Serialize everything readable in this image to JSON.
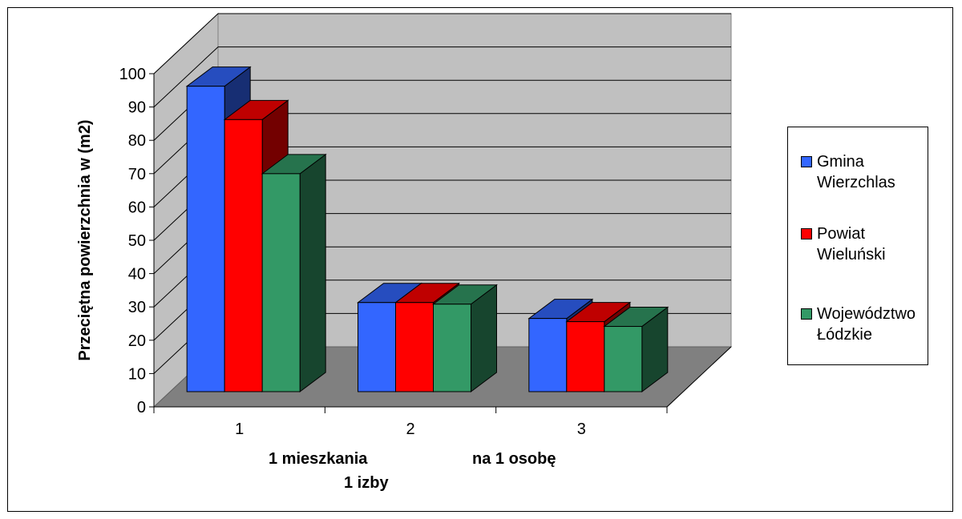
{
  "chart_data": {
    "type": "bar",
    "title": "",
    "ylabel": "Przeciętna powierzchnia w (m2)",
    "xlabel": "",
    "ylim": [
      0,
      100
    ],
    "yticks": [
      "0",
      "10",
      "20",
      "30",
      "40",
      "50",
      "60",
      "70",
      "80",
      "90",
      "100"
    ],
    "categories": [
      "1",
      "2",
      "3"
    ],
    "series": [
      {
        "name": "Gmina Wierzchlas",
        "color": "#3366ff",
        "values": [
          96,
          28,
          23
        ]
      },
      {
        "name": "Powiat Wieluński",
        "color": "#ff0000",
        "values": [
          85.5,
          28,
          22
        ]
      },
      {
        "name": "Województwo Łódzkie",
        "color": "#339966",
        "values": [
          68.5,
          27.5,
          20.5
        ]
      }
    ],
    "legend_position": "right",
    "grid": true,
    "three_d": true,
    "annotations": {
      "line1_left": "1 mieszkania",
      "line1_right": "na 1 osobę",
      "line2": "1 izby"
    }
  },
  "legend": {
    "items": [
      {
        "line1": "Gmina",
        "line2": "Wierzchlas",
        "color": "#3366ff"
      },
      {
        "line1": "Powiat",
        "line2": "Wieluński",
        "color": "#ff0000"
      },
      {
        "line1": "Województwo",
        "line2": "Łódzkie",
        "color": "#339966"
      }
    ]
  }
}
